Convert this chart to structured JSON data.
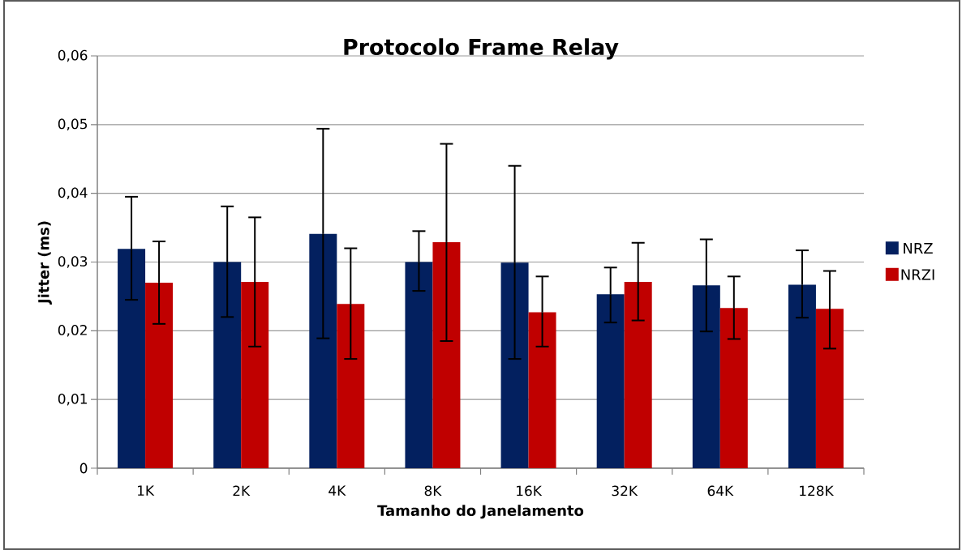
{
  "chart_data": {
    "type": "bar",
    "title": "Protocolo Frame Relay",
    "xlabel": "Tamanho do Janelamento",
    "ylabel": "Jitter (ms)",
    "categories": [
      "1K",
      "2K",
      "4K",
      "8K",
      "16K",
      "32K",
      "64K",
      "128K"
    ],
    "series": [
      {
        "name": "NRZ",
        "color": "#03205f",
        "values": [
          0.0319,
          0.03,
          0.0341,
          0.03,
          0.0299,
          0.0253,
          0.0266,
          0.0267
        ],
        "errors": [
          [
            0.0245,
            0.0395
          ],
          [
            0.022,
            0.0381
          ],
          [
            0.0189,
            0.0494
          ],
          [
            0.0258,
            0.0345
          ],
          [
            0.0159,
            0.044
          ],
          [
            0.0212,
            0.0292
          ],
          [
            0.0199,
            0.0333
          ],
          [
            0.0219,
            0.0317
          ]
        ]
      },
      {
        "name": "NRZI",
        "color": "#c00000",
        "values": [
          0.027,
          0.0271,
          0.0239,
          0.0329,
          0.0227,
          0.0271,
          0.0233,
          0.0232
        ],
        "errors": [
          [
            0.021,
            0.033
          ],
          [
            0.0177,
            0.0365
          ],
          [
            0.0159,
            0.032
          ],
          [
            0.0185,
            0.0472
          ],
          [
            0.0177,
            0.0279
          ],
          [
            0.0215,
            0.0328
          ],
          [
            0.0188,
            0.0279
          ],
          [
            0.0174,
            0.0287
          ]
        ]
      }
    ],
    "ylim": [
      0,
      0.06
    ],
    "yticks": [
      0,
      {
        "value": 0.01,
        "label": "0,01"
      },
      {
        "value": 0.02,
        "label": "0,02"
      },
      {
        "value": 0.03,
        "label": "0,03"
      },
      {
        "value": 0.04,
        "label": "0,04"
      },
      {
        "value": 0.05,
        "label": "0,05"
      },
      {
        "value": 0.06,
        "label": "0,06"
      }
    ],
    "grid": "y",
    "legend": "right"
  }
}
